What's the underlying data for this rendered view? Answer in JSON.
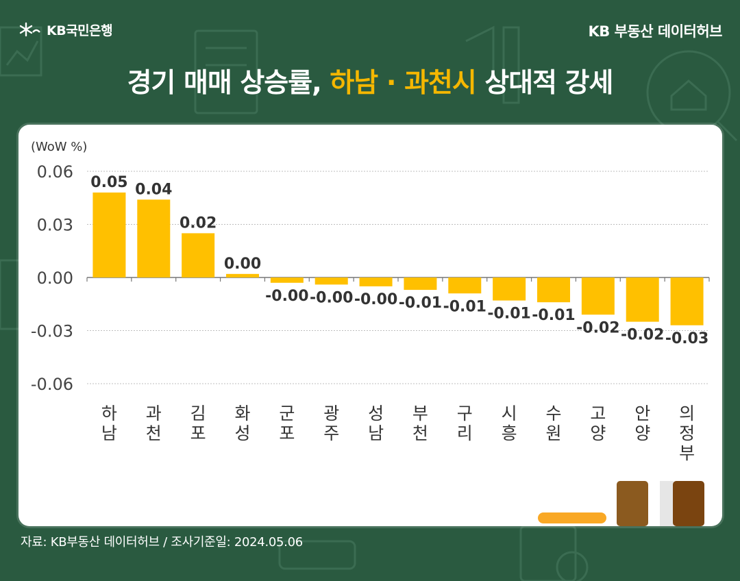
{
  "header": {
    "logo_text": "KB국민은행",
    "hub_text": "KB 부동산 데이터허브"
  },
  "title": {
    "part1": "경기 매매 상승률,",
    "highlight": "하남 · 과천시",
    "part2": "상대적 강세"
  },
  "footer": {
    "source": "자료: KB부동산 데이터허브 / 조사기준일: 2024.05.06"
  },
  "colors": {
    "background": "#2a5a40",
    "bar": "#ffc000",
    "highlight": "#f5b700"
  },
  "chart_data": {
    "type": "bar",
    "ylabel": "(WoW %)",
    "ylim": [
      -0.06,
      0.06
    ],
    "yticks": [
      "0.06",
      "0.03",
      "0.00",
      "-0.03",
      "-0.06"
    ],
    "grid": true,
    "categories": [
      "하\n남",
      "과\n천",
      "김\n포",
      "화\n성",
      "군\n포",
      "광\n주",
      "성\n남",
      "부\n천",
      "구\n리",
      "시\n흥",
      "수\n원",
      "고\n양",
      "안\n양",
      "의\n정\n부"
    ],
    "values": [
      0.048,
      0.044,
      0.025,
      0.002,
      -0.003,
      -0.004,
      -0.005,
      -0.007,
      -0.009,
      -0.013,
      -0.014,
      -0.021,
      -0.025,
      -0.027
    ],
    "labels": [
      "0.05",
      "0.04",
      "0.02",
      "0.00",
      "-0.00",
      "-0.00",
      "-0.00",
      "-0.01",
      "-0.01",
      "-0.01",
      "-0.01",
      "-0.02",
      "-0.02",
      "-0.03"
    ]
  }
}
